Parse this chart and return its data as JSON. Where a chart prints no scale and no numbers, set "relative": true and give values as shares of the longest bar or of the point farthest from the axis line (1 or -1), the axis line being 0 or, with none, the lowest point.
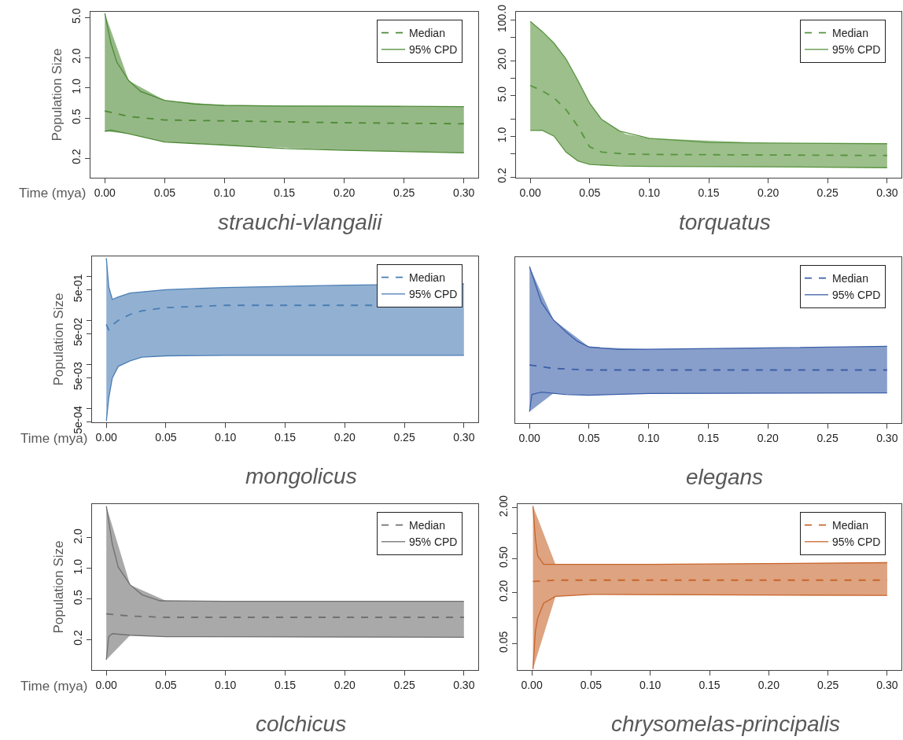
{
  "chart_data": [
    {
      "type": "line",
      "title": "strauchi-vlangalii",
      "xlabel": "Time (mya)",
      "ylabel": "Population Size",
      "log": "y",
      "legend": "top right",
      "xlim": [
        -0.012,
        0.312
      ],
      "xticks": [
        {
          "value": 0,
          "label": "0.00"
        },
        {
          "value": 0.05,
          "label": "0.05"
        },
        {
          "value": 0.1,
          "label": "0.10"
        },
        {
          "value": 0.15,
          "label": "0.15"
        },
        {
          "value": 0.2,
          "label": "0.20"
        },
        {
          "value": 0.25,
          "label": "0.25"
        },
        {
          "value": 0.3,
          "label": "0.30"
        }
      ],
      "ylim": [
        0.128,
        5.7
      ],
      "yticks": [
        {
          "value": 0.2,
          "label": "0.2"
        },
        {
          "value": 0.5,
          "label": "0.5"
        },
        {
          "value": 1,
          "label": "1.0"
        },
        {
          "value": 2,
          "label": "2.0"
        },
        {
          "value": 5,
          "label": "5.0"
        }
      ],
      "series": [
        {
          "name": "Median",
          "color": "#4e8a36",
          "line_style": "dashed",
          "x": [
            0,
            0.02,
            0.05,
            0.1,
            0.2,
            0.3
          ],
          "values": [
            0.59,
            0.52,
            0.48,
            0.47,
            0.45,
            0.44
          ],
          "lower": [
            0.37,
            0.35,
            0.29,
            0.27,
            0.24,
            0.226
          ],
          "upper": [
            5.5,
            1.18,
            0.75,
            0.67,
            0.66,
            0.65
          ]
        },
        {
          "name": "95% CPD",
          "color": "#4e8a36",
          "line_style": "solid",
          "x": [
            0,
            0.005,
            0.01,
            0.02,
            0.03,
            0.05,
            0.075,
            0.1,
            0.15,
            0.2,
            0.3
          ],
          "values": [
            5.5,
            2.8,
            1.8,
            1.18,
            0.92,
            0.75,
            0.69,
            0.67,
            0.66,
            0.66,
            0.65
          ]
        },
        {
          "color": "#4e8a36",
          "line_style": "solid",
          "x": [
            0,
            0.005,
            0.02,
            0.05,
            0.1,
            0.15,
            0.2,
            0.3
          ],
          "values": [
            0.37,
            0.38,
            0.35,
            0.29,
            0.27,
            0.25,
            0.24,
            0.226
          ]
        }
      ]
    },
    {
      "type": "line",
      "title": "torquatus",
      "log": "y",
      "legend": "top right",
      "xlim": [
        -0.012,
        0.312
      ],
      "xticks": [
        {
          "value": 0,
          "label": "0.00"
        },
        {
          "value": 0.05,
          "label": "0.05"
        },
        {
          "value": 0.1,
          "label": "0.10"
        },
        {
          "value": 0.15,
          "label": "0.15"
        },
        {
          "value": 0.2,
          "label": "0.20"
        },
        {
          "value": 0.25,
          "label": "0.25"
        },
        {
          "value": 0.3,
          "label": "0.30"
        }
      ],
      "ylim": [
        0.195,
        139
      ],
      "yticks": [
        {
          "value": 0.2,
          "label": "0.2"
        },
        {
          "value": 0.5,
          "label": null
        },
        {
          "value": 1,
          "label": "1.0"
        },
        {
          "value": 2,
          "label": null
        },
        {
          "value": 5,
          "label": "5.0"
        },
        {
          "value": 10,
          "label": null
        },
        {
          "value": 20,
          "label": "20.0"
        },
        {
          "value": 50,
          "label": null
        },
        {
          "value": 100,
          "label": "100.0"
        }
      ],
      "series": [
        {
          "name": "Median",
          "color": "#5a9440",
          "line_style": "dashed",
          "x": [
            0,
            0.01,
            0.02,
            0.03,
            0.04,
            0.05,
            0.06,
            0.08,
            0.1,
            0.2,
            0.3
          ],
          "values": [
            7.5,
            6.1,
            4.6,
            2.9,
            1.5,
            0.66,
            0.54,
            0.5,
            0.49,
            0.48,
            0.47
          ],
          "lower": [
            1.27,
            1.28,
            1.01,
            0.54,
            0.38,
            0.33,
            0.32,
            0.31,
            0.305,
            0.3,
            0.29
          ],
          "upper": [
            95,
            64,
            40,
            21.6,
            9.2,
            3.7,
            1.96,
            1.1,
            0.93,
            0.77,
            0.75
          ]
        },
        {
          "name": "95% CPD",
          "color": "#5a9440",
          "line_style": "solid",
          "x": [
            0,
            0.01,
            0.02,
            0.03,
            0.04,
            0.05,
            0.06,
            0.075,
            0.1,
            0.15,
            0.2,
            0.3
          ],
          "values": [
            95,
            64,
            40,
            21.6,
            9.2,
            3.7,
            1.96,
            1.24,
            0.93,
            0.79,
            0.77,
            0.75
          ]
        },
        {
          "color": "#5a9440",
          "line_style": "solid",
          "x": [
            0,
            0.01,
            0.02,
            0.03,
            0.04,
            0.05,
            0.075,
            0.1,
            0.2,
            0.3
          ],
          "values": [
            1.27,
            1.28,
            1.01,
            0.54,
            0.38,
            0.33,
            0.31,
            0.305,
            0.3,
            0.29
          ]
        }
      ]
    },
    {
      "type": "line",
      "title": "mongolicus",
      "xlabel": "Time (mya)",
      "ylabel": "Population Size",
      "log": "y",
      "legend": "top right",
      "xlim": [
        -0.012,
        0.312
      ],
      "xticks": [
        {
          "value": 0,
          "label": "0.00"
        },
        {
          "value": 0.05,
          "label": "0.05"
        },
        {
          "value": 0.1,
          "label": "0.10"
        },
        {
          "value": 0.15,
          "label": "0.15"
        },
        {
          "value": 0.2,
          "label": "0.20"
        },
        {
          "value": 0.25,
          "label": "0.25"
        },
        {
          "value": 0.3,
          "label": "0.30"
        }
      ],
      "ylim": [
        0.00048,
        2.86
      ],
      "yticks": [
        {
          "value": 0.0005,
          "label": "5e-04"
        },
        {
          "value": 0.001,
          "label": null
        },
        {
          "value": 0.005,
          "label": "5e-03"
        },
        {
          "value": 0.01,
          "label": null
        },
        {
          "value": 0.05,
          "label": "5e-02"
        },
        {
          "value": 0.1,
          "label": null
        },
        {
          "value": 0.5,
          "label": "5e-01"
        },
        {
          "value": 1,
          "label": null
        }
      ],
      "series": [
        {
          "name": "Median",
          "color": "#4a7db4",
          "line_style": "dashed",
          "x": [
            0,
            0.002,
            0.005,
            0.01,
            0.02,
            0.03,
            0.05,
            0.1,
            0.2,
            0.3
          ],
          "values": [
            0.081,
            0.06,
            0.078,
            0.1,
            0.137,
            0.165,
            0.195,
            0.22,
            0.22,
            0.22
          ],
          "lower": [
            0.00051,
            0.0017,
            0.0049,
            0.009,
            0.012,
            0.0146,
            0.0156,
            0.016,
            0.016,
            0.016
          ],
          "upper": [
            2.6,
            0.58,
            0.3,
            0.34,
            0.42,
            0.45,
            0.5,
            0.56,
            0.63,
            0.68
          ]
        },
        {
          "name": "95% CPD",
          "color": "#4a7db4",
          "line_style": "solid",
          "x": [
            0,
            0.002,
            0.005,
            0.01,
            0.02,
            0.05,
            0.1,
            0.2,
            0.3
          ],
          "values": [
            2.6,
            0.58,
            0.3,
            0.34,
            0.42,
            0.5,
            0.56,
            0.63,
            0.68
          ]
        },
        {
          "color": "#4a7db4",
          "line_style": "solid",
          "x": [
            0,
            0.002,
            0.005,
            0.01,
            0.02,
            0.03,
            0.05,
            0.1,
            0.3
          ],
          "values": [
            0.00051,
            0.0017,
            0.0049,
            0.009,
            0.012,
            0.0146,
            0.0156,
            0.016,
            0.016
          ]
        }
      ]
    },
    {
      "type": "line",
      "title": "elegans",
      "relative": true,
      "tick_labels": "x",
      "legend": "top right",
      "xlim": [
        -0.012,
        0.312
      ],
      "xticks": [
        {
          "value": 0,
          "label": "0.00"
        },
        {
          "value": 0.05,
          "label": "0.05"
        },
        {
          "value": 0.1,
          "label": "0.10"
        },
        {
          "value": 0.15,
          "label": "0.15"
        },
        {
          "value": 0.2,
          "label": "0.20"
        },
        {
          "value": 0.25,
          "label": "0.25"
        },
        {
          "value": 0.3,
          "label": "0.30"
        }
      ],
      "series": [
        {
          "name": "Median",
          "color": "#3b5fa8",
          "line_style": "dashed",
          "x": [
            0,
            0.02,
            0.05,
            0.1,
            0.2,
            0.3
          ],
          "values": [
            0.371,
            0.349,
            0.339,
            0.339,
            0.339,
            0.339
          ],
          "lower": [
            0.073,
            0.19,
            0.178,
            0.189,
            0.191,
            0.193
          ],
          "upper": [
            1,
            0.66,
            0.486,
            0.472,
            0.48,
            0.49
          ]
        },
        {
          "name": "95% CPD",
          "color": "#3b5fa8",
          "line_style": "solid",
          "x": [
            0,
            0.01,
            0.02,
            0.03,
            0.04,
            0.05,
            0.075,
            0.1,
            0.2,
            0.3
          ],
          "values": [
            1,
            0.77,
            0.66,
            0.587,
            0.523,
            0.486,
            0.47,
            0.472,
            0.48,
            0.49
          ]
        },
        {
          "color": "#3b5fa8",
          "line_style": "solid",
          "x": [
            0,
            0.002,
            0.01,
            0.03,
            0.05,
            0.1,
            0.3
          ],
          "values": [
            0.073,
            0.183,
            0.198,
            0.183,
            0.178,
            0.189,
            0.193
          ]
        }
      ]
    },
    {
      "type": "line",
      "title": "colchicus",
      "xlabel": "Time (mya)",
      "ylabel": "Population Size",
      "log": "y",
      "legend": "top right",
      "xlim": [
        -0.012,
        0.312
      ],
      "xticks": [
        {
          "value": 0,
          "label": "0.00"
        },
        {
          "value": 0.05,
          "label": "0.05"
        },
        {
          "value": 0.1,
          "label": "0.10"
        },
        {
          "value": 0.15,
          "label": "0.15"
        },
        {
          "value": 0.2,
          "label": "0.20"
        },
        {
          "value": 0.25,
          "label": "0.25"
        },
        {
          "value": 0.3,
          "label": "0.30"
        }
      ],
      "ylim": [
        0.1,
        4.3
      ],
      "yticks": [
        {
          "value": 0.2,
          "label": "0.2"
        },
        {
          "value": 0.5,
          "label": "0.5"
        },
        {
          "value": 1,
          "label": "1.0"
        },
        {
          "value": 2,
          "label": "2.0"
        }
      ],
      "series": [
        {
          "name": "Median",
          "color": "#707070",
          "line_style": "dashed",
          "x": [
            0,
            0.02,
            0.05,
            0.1,
            0.2,
            0.3
          ],
          "values": [
            0.357,
            0.34,
            0.33,
            0.33,
            0.33,
            0.33
          ],
          "lower": [
            0.126,
            0.22,
            0.213,
            0.212,
            0.21,
            0.21
          ],
          "upper": [
            4.1,
            0.69,
            0.48,
            0.475,
            0.475,
            0.475
          ]
        },
        {
          "name": "95% CPD",
          "color": "#707070",
          "line_style": "solid",
          "x": [
            0,
            0.005,
            0.01,
            0.02,
            0.03,
            0.045,
            0.1,
            0.3
          ],
          "values": [
            4.1,
            1.74,
            1.03,
            0.69,
            0.55,
            0.48,
            0.475,
            0.475
          ]
        },
        {
          "color": "#707070",
          "line_style": "solid",
          "x": [
            0,
            0.002,
            0.005,
            0.02,
            0.05,
            0.3
          ],
          "values": [
            0.126,
            0.213,
            0.228,
            0.22,
            0.213,
            0.21
          ]
        }
      ]
    },
    {
      "type": "line",
      "title": "chrysomelas-principalis",
      "log": "y",
      "legend": "top right",
      "xlim": [
        -0.012,
        0.312
      ],
      "xticks": [
        {
          "value": 0,
          "label": "0.00"
        },
        {
          "value": 0.05,
          "label": "0.05"
        },
        {
          "value": 0.1,
          "label": "0.10"
        },
        {
          "value": 0.15,
          "label": "0.15"
        },
        {
          "value": 0.2,
          "label": "0.20"
        },
        {
          "value": 0.25,
          "label": "0.25"
        },
        {
          "value": 0.3,
          "label": "0.30"
        }
      ],
      "ylim": [
        0.0244,
        2.21
      ],
      "yticks": [
        {
          "value": 0.05,
          "label": "0.05"
        },
        {
          "value": 0.1,
          "label": null
        },
        {
          "value": 0.2,
          "label": "0.20"
        },
        {
          "value": 0.5,
          "label": "0.50"
        },
        {
          "value": 1,
          "label": null
        },
        {
          "value": 2,
          "label": "2.00"
        }
      ],
      "series": [
        {
          "name": "Median",
          "color": "#c8652c",
          "line_style": "dashed",
          "x": [
            0.001,
            0.02,
            0.05,
            0.1,
            0.2,
            0.3
          ],
          "values": [
            0.27,
            0.28,
            0.28,
            0.28,
            0.28,
            0.28
          ],
          "lower": [
            0.025,
            0.18,
            0.19,
            0.188,
            0.186,
            0.185
          ],
          "upper": [
            2.1,
            0.43,
            0.43,
            0.43,
            0.44,
            0.45
          ]
        },
        {
          "name": "95% CPD",
          "color": "#c8652c",
          "line_style": "solid",
          "x": [
            0.001,
            0.003,
            0.005,
            0.01,
            0.05,
            0.1,
            0.2,
            0.3
          ],
          "values": [
            2.1,
            0.87,
            0.54,
            0.43,
            0.43,
            0.43,
            0.44,
            0.45
          ]
        },
        {
          "color": "#c8652c",
          "line_style": "solid",
          "x": [
            0.001,
            0.003,
            0.005,
            0.01,
            0.02,
            0.05,
            0.3
          ],
          "values": [
            0.025,
            0.069,
            0.1,
            0.15,
            0.18,
            0.19,
            0.185
          ]
        }
      ]
    }
  ]
}
